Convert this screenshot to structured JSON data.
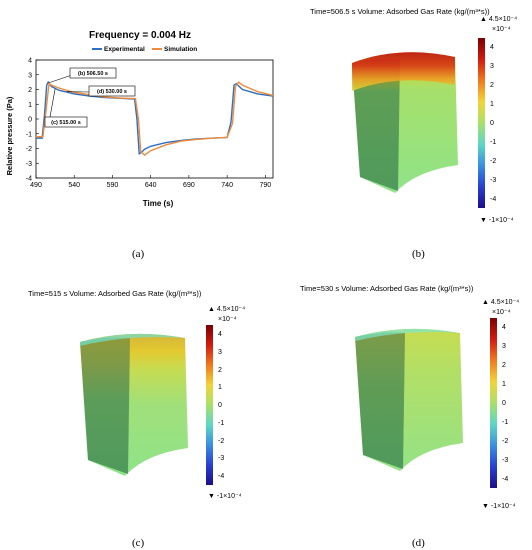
{
  "chart_data": {
    "type": "line",
    "title": "Frequency = 0.004 Hz",
    "xlabel": "Time (s)",
    "ylabel": "Relative pressure (Pa)",
    "xlim": [
      490,
      800
    ],
    "ylim": [
      -4,
      4
    ],
    "xticks": [
      490,
      540,
      590,
      640,
      690,
      740,
      790
    ],
    "yticks": [
      -4,
      -3,
      -2,
      -1,
      0,
      1,
      2,
      3,
      4
    ],
    "grid": false,
    "legend": "top-center",
    "series": [
      {
        "name": "Experimental",
        "color": "#2f6fbf",
        "x": [
          490,
          498,
          501,
          504,
          506,
          510,
          520,
          540,
          560,
          580,
          600,
          619,
          622,
          625,
          627,
          632,
          640,
          660,
          680,
          700,
          720,
          740,
          745,
          749,
          752,
          760,
          780,
          800
        ],
        "y": [
          -1.3,
          -1.3,
          0.2,
          2.3,
          2.5,
          2.2,
          1.95,
          1.7,
          1.55,
          1.45,
          1.4,
          1.35,
          0.0,
          -2.35,
          -2.3,
          -2.05,
          -1.85,
          -1.6,
          -1.45,
          -1.35,
          -1.3,
          -1.25,
          -0.2,
          2.3,
          2.4,
          2.0,
          1.7,
          1.55
        ]
      },
      {
        "name": "Simulation",
        "color": "#f08a3c",
        "x": [
          490,
          499,
          503,
          507,
          510,
          520,
          540,
          560,
          580,
          600,
          620,
          624,
          627,
          632,
          640,
          660,
          680,
          700,
          720,
          740,
          747,
          751,
          755,
          760,
          780,
          800
        ],
        "y": [
          -1.2,
          -1.2,
          0.5,
          2.4,
          2.3,
          2.1,
          1.8,
          1.65,
          1.5,
          1.42,
          1.38,
          0.0,
          -2.2,
          -2.45,
          -2.15,
          -1.75,
          -1.5,
          -1.38,
          -1.3,
          -1.25,
          -0.3,
          2.2,
          2.5,
          2.3,
          1.85,
          1.6
        ]
      }
    ],
    "annotations": [
      {
        "label": "(b) 506.50 s",
        "x": 506.5
      },
      {
        "label": "(d) 530.00 s",
        "x": 530.0
      },
      {
        "label": "(c) 515.00 s",
        "x": 515.0
      }
    ]
  },
  "captions": {
    "a": "(a)",
    "b": "(b)",
    "c": "(c)",
    "d": "(d)"
  },
  "panels": {
    "b": {
      "title": "Time=506.5 s  Volume: Adsorbed Gas Rate (kg/(m³*s))",
      "max_label": "▲ 4.5×10⁻⁴",
      "exp_label": "×10⁻⁴",
      "min_label": "▼ -1×10⁻⁴",
      "ticks": [
        "4",
        "3",
        "2",
        "1",
        "0",
        "-1",
        "-2",
        "-3",
        "-4"
      ]
    },
    "c": {
      "title": "Time=515 s  Volume: Adsorbed Gas Rate (kg/(m³*s))",
      "max_label": "▲ 4.5×10⁻⁴",
      "exp_label": "×10⁻⁴",
      "min_label": "▼ -1×10⁻⁴",
      "ticks": [
        "4",
        "3",
        "2",
        "1",
        "0",
        "-1",
        "-2",
        "-3",
        "-4"
      ]
    },
    "d": {
      "title": "Time=530 s  Volume: Adsorbed Gas Rate (kg/(m³*s))",
      "max_label": "▲ 4.5×10⁻⁴",
      "exp_label": "×10⁻⁴",
      "min_label": "▼ -1×10⁻⁴",
      "ticks": [
        "4",
        "3",
        "2",
        "1",
        "0",
        "-1",
        "-2",
        "-3",
        "-4"
      ]
    }
  }
}
